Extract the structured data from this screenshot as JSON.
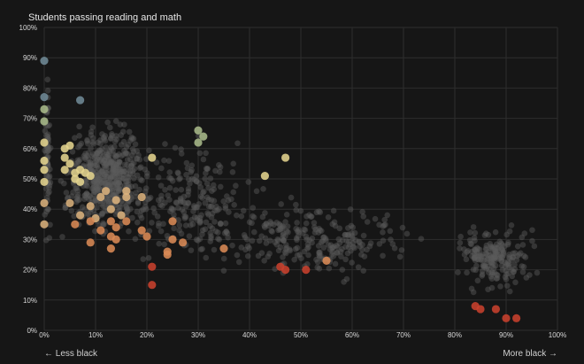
{
  "chart_data": {
    "type": "scatter",
    "title": "Students passing reading and math",
    "xlabel_left": "← Less black",
    "xlabel_right": "More black →",
    "xlim": [
      0,
      100
    ],
    "ylim": [
      0,
      100
    ],
    "x_ticks": [
      "0%",
      "10%",
      "20%",
      "30%",
      "40%",
      "50%",
      "60%",
      "70%",
      "80%",
      "90%",
      "100%"
    ],
    "y_ticks": [
      "0%",
      "10%",
      "20%",
      "30%",
      "40%",
      "50%",
      "60%",
      "70%",
      "80%",
      "90%",
      "100%"
    ],
    "grid": true,
    "colors": {
      "background": "#161616",
      "grid": "#2e2e2e",
      "background_points": "#5a5a5a",
      "blue": "#6f8a96",
      "green": "#a9b98a",
      "yellow": "#e4d48e",
      "tan": "#d9b07c",
      "orange": "#d98a55",
      "red": "#c8412e"
    },
    "highlighted_points": [
      {
        "x": 0,
        "y": 89,
        "color": "blue"
      },
      {
        "x": 0,
        "y": 77,
        "color": "blue"
      },
      {
        "x": 7,
        "y": 76,
        "color": "blue"
      },
      {
        "x": 30,
        "y": 66,
        "color": "green"
      },
      {
        "x": 31,
        "y": 64,
        "color": "green"
      },
      {
        "x": 30,
        "y": 62,
        "color": "green"
      },
      {
        "x": 0,
        "y": 73,
        "color": "green"
      },
      {
        "x": 0,
        "y": 69,
        "color": "green"
      },
      {
        "x": 47,
        "y": 57,
        "color": "yellow"
      },
      {
        "x": 21,
        "y": 57,
        "color": "yellow"
      },
      {
        "x": 43,
        "y": 51,
        "color": "yellow"
      },
      {
        "x": 5,
        "y": 61,
        "color": "yellow"
      },
      {
        "x": 4,
        "y": 60,
        "color": "yellow"
      },
      {
        "x": 4,
        "y": 57,
        "color": "yellow"
      },
      {
        "x": 5,
        "y": 55,
        "color": "yellow"
      },
      {
        "x": 4,
        "y": 53,
        "color": "yellow"
      },
      {
        "x": 6,
        "y": 52,
        "color": "yellow"
      },
      {
        "x": 7,
        "y": 53,
        "color": "yellow"
      },
      {
        "x": 8,
        "y": 52,
        "color": "yellow"
      },
      {
        "x": 6,
        "y": 50,
        "color": "yellow"
      },
      {
        "x": 7,
        "y": 49,
        "color": "yellow"
      },
      {
        "x": 9,
        "y": 51,
        "color": "yellow"
      },
      {
        "x": 0,
        "y": 62,
        "color": "yellow"
      },
      {
        "x": 0,
        "y": 56,
        "color": "yellow"
      },
      {
        "x": 0,
        "y": 53,
        "color": "yellow"
      },
      {
        "x": 0,
        "y": 49,
        "color": "yellow"
      },
      {
        "x": 12,
        "y": 46,
        "color": "tan"
      },
      {
        "x": 16,
        "y": 46,
        "color": "tan"
      },
      {
        "x": 11,
        "y": 44,
        "color": "tan"
      },
      {
        "x": 14,
        "y": 43,
        "color": "tan"
      },
      {
        "x": 16,
        "y": 44,
        "color": "tan"
      },
      {
        "x": 19,
        "y": 44,
        "color": "tan"
      },
      {
        "x": 5,
        "y": 42,
        "color": "tan"
      },
      {
        "x": 9,
        "y": 41,
        "color": "tan"
      },
      {
        "x": 13,
        "y": 40,
        "color": "tan"
      },
      {
        "x": 7,
        "y": 38,
        "color": "tan"
      },
      {
        "x": 10,
        "y": 37,
        "color": "tan"
      },
      {
        "x": 15,
        "y": 38,
        "color": "tan"
      },
      {
        "x": 0,
        "y": 42,
        "color": "tan"
      },
      {
        "x": 0,
        "y": 35,
        "color": "tan"
      },
      {
        "x": 6,
        "y": 35,
        "color": "orange"
      },
      {
        "x": 9,
        "y": 36,
        "color": "orange"
      },
      {
        "x": 13,
        "y": 36,
        "color": "orange"
      },
      {
        "x": 16,
        "y": 36,
        "color": "orange"
      },
      {
        "x": 25,
        "y": 36,
        "color": "orange"
      },
      {
        "x": 11,
        "y": 33,
        "color": "orange"
      },
      {
        "x": 14,
        "y": 34,
        "color": "orange"
      },
      {
        "x": 19,
        "y": 33,
        "color": "orange"
      },
      {
        "x": 13,
        "y": 31,
        "color": "orange"
      },
      {
        "x": 14,
        "y": 30,
        "color": "orange"
      },
      {
        "x": 20,
        "y": 31,
        "color": "orange"
      },
      {
        "x": 25,
        "y": 30,
        "color": "orange"
      },
      {
        "x": 9,
        "y": 29,
        "color": "orange"
      },
      {
        "x": 27,
        "y": 29,
        "color": "orange"
      },
      {
        "x": 13,
        "y": 27,
        "color": "orange"
      },
      {
        "x": 35,
        "y": 27,
        "color": "orange"
      },
      {
        "x": 24,
        "y": 26,
        "color": "orange"
      },
      {
        "x": 24,
        "y": 25,
        "color": "orange"
      },
      {
        "x": 55,
        "y": 23,
        "color": "orange"
      },
      {
        "x": 21,
        "y": 21,
        "color": "red"
      },
      {
        "x": 46,
        "y": 21,
        "color": "red"
      },
      {
        "x": 47,
        "y": 20,
        "color": "red"
      },
      {
        "x": 51,
        "y": 20,
        "color": "red"
      },
      {
        "x": 21,
        "y": 15,
        "color": "red"
      },
      {
        "x": 84,
        "y": 8,
        "color": "red"
      },
      {
        "x": 85,
        "y": 7,
        "color": "red"
      },
      {
        "x": 88,
        "y": 7,
        "color": "red"
      },
      {
        "x": 90,
        "y": 4,
        "color": "red"
      },
      {
        "x": 92,
        "y": 4,
        "color": "red"
      }
    ]
  }
}
